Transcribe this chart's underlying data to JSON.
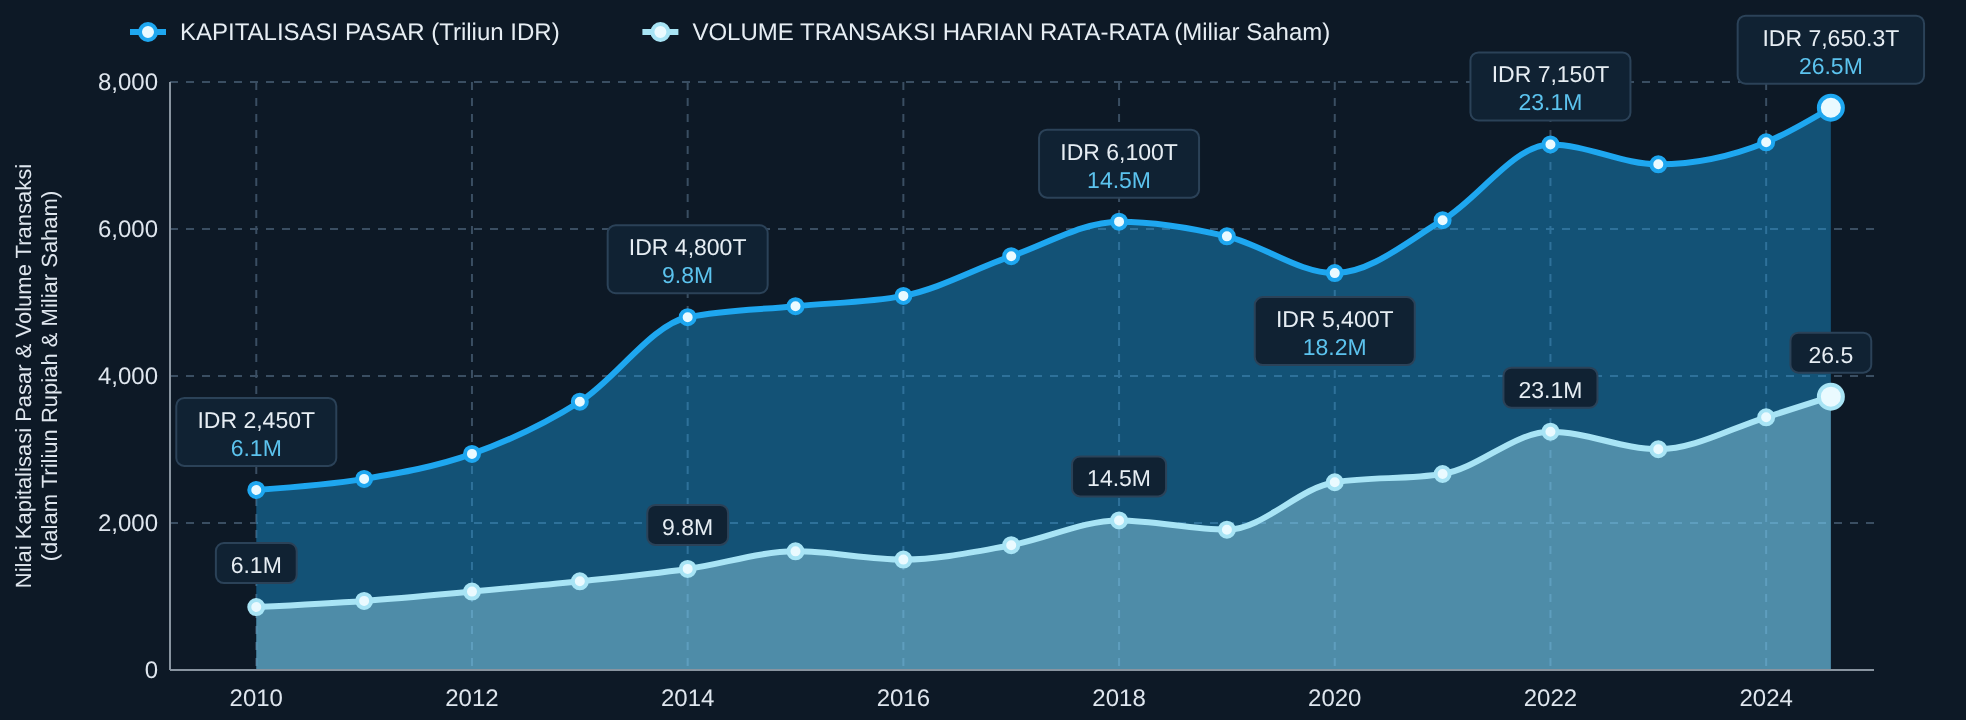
{
  "chart_data": {
    "type": "area",
    "ylabel": "Nilai Kapitalisasi Pasar & Volume Transaksi\n(dalam Triliun Rupiah & Miliar Saham)",
    "x": [
      2010,
      2011,
      2012,
      2013,
      2014,
      2015,
      2016,
      2017,
      2018,
      2019,
      2020,
      2021,
      2022,
      2023,
      2024,
      2024.6
    ],
    "xlim": [
      2009.2,
      2025
    ],
    "xticks": [
      2010,
      2012,
      2014,
      2016,
      2018,
      2020,
      2022,
      2024
    ],
    "ylim": [
      0,
      8000
    ],
    "yticks": [
      {
        "value": 0,
        "label": "0"
      },
      {
        "value": 2000,
        "label": "2,000"
      },
      {
        "value": 4000,
        "label": "4,000"
      },
      {
        "value": 6000,
        "label": "6,000"
      },
      {
        "value": 8000,
        "label": "8,000"
      }
    ],
    "y2lim": [
      0,
      57
    ],
    "grid": true,
    "legend": "top left",
    "marker": "circle",
    "line_style": "solid",
    "series": [
      {
        "name": "KAPITALISASI PASAR (Triliun IDR)",
        "color": "#1ea7f0",
        "values": [
          2450,
          2600,
          2940,
          3650,
          4800,
          4950,
          5090,
          5630,
          6100,
          5900,
          5400,
          6120,
          7150,
          6880,
          7180,
          7650.3
        ],
        "value_labels": [
          "IDR 2,450T\n6.1M",
          null,
          null,
          null,
          "IDR 4,800T\n9.8M",
          null,
          null,
          null,
          "IDR 6,100T\n14.5M",
          null,
          "IDR 5,400T\n18.2M",
          null,
          "IDR 7,150T\n23.1M",
          null,
          null,
          "IDR 7,650.3T\n26.5M"
        ]
      },
      {
        "name": "VOLUME TRANSAKSI HARIAN RATA-RATA (Miliar Saham)",
        "color": "#a8e4f5",
        "axis": "y2",
        "values": [
          6.1,
          6.7,
          7.6,
          8.6,
          9.8,
          11.5,
          10.7,
          12.1,
          14.5,
          13.6,
          18.2,
          19.0,
          23.1,
          21.4,
          24.5,
          26.5
        ],
        "value_labels": [
          "6.1M",
          null,
          null,
          null,
          "9.8M",
          null,
          null,
          null,
          "14.5M",
          null,
          null,
          null,
          "23.1M",
          null,
          null,
          "26.5"
        ]
      }
    ]
  }
}
